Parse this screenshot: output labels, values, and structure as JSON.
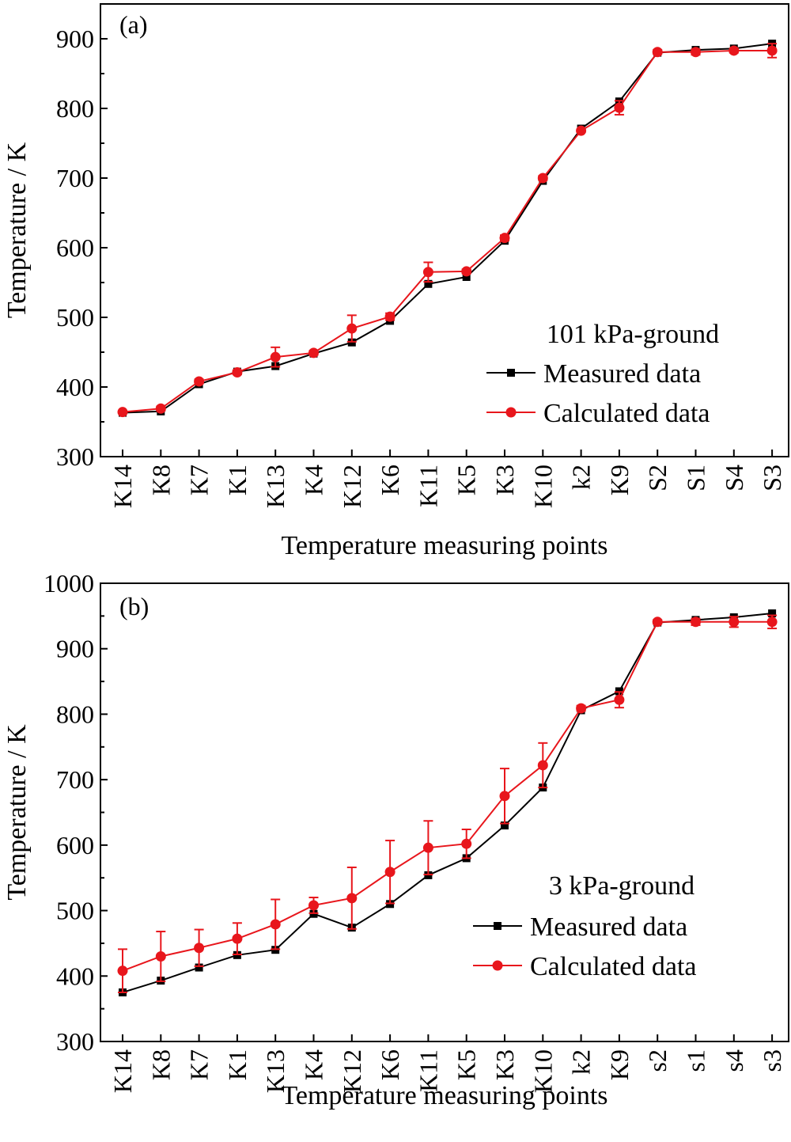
{
  "chart_data": [
    {
      "type": "line",
      "panel_label": "(a)",
      "legend_title": "101 kPa-ground",
      "xlabel": "Temperature measuring points",
      "ylabel": "Temperature / K",
      "ylim": [
        300,
        950
      ],
      "yticks": [
        300,
        400,
        500,
        600,
        700,
        800,
        900
      ],
      "grid": false,
      "legend_position": "lower-right",
      "categories": [
        "K14",
        "K8",
        "K7",
        "K1",
        "K13",
        "K4",
        "K12",
        "K6",
        "K11",
        "K5",
        "K3",
        "K10",
        "k2",
        "K9",
        "S2",
        "S1",
        "S4",
        "S3"
      ],
      "series": [
        {
          "name": "Measured data",
          "color": "#000000",
          "marker": "square",
          "values": [
            363,
            365,
            404,
            422,
            430,
            448,
            464,
            495,
            548,
            558,
            610,
            696,
            771,
            810,
            880,
            884,
            886,
            893
          ],
          "errors": [
            0,
            0,
            0,
            0,
            0,
            0,
            0,
            0,
            0,
            0,
            0,
            0,
            0,
            0,
            0,
            0,
            0,
            0
          ]
        },
        {
          "name": "Calculated data",
          "color": "#e8161c",
          "marker": "circle",
          "values": [
            364,
            369,
            408,
            421,
            443,
            449,
            484,
            501,
            565,
            566,
            614,
            700,
            768,
            801,
            881,
            881,
            883,
            883
          ],
          "errors": [
            0,
            3,
            3,
            3,
            14,
            3,
            19,
            5,
            14,
            3,
            4,
            3,
            2,
            10,
            3,
            4,
            3,
            10
          ]
        }
      ]
    },
    {
      "type": "line",
      "panel_label": "(b)",
      "legend_title": "3 kPa-ground",
      "xlabel": "Temperature measuring points",
      "ylabel": "Temperature / K",
      "ylim": [
        300,
        1000
      ],
      "yticks": [
        300,
        400,
        500,
        600,
        700,
        800,
        900,
        1000
      ],
      "grid": false,
      "legend_position": "lower-right",
      "categories": [
        "K14",
        "K8",
        "K7",
        "K1",
        "K13",
        "K4",
        "K12",
        "K6",
        "K11",
        "K5",
        "K3",
        "K10",
        "k2",
        "K9",
        "s2",
        "s1",
        "s4",
        "s3"
      ],
      "series": [
        {
          "name": "Measured data",
          "color": "#000000",
          "marker": "square",
          "values": [
            375,
            393,
            413,
            432,
            440,
            495,
            474,
            510,
            554,
            580,
            630,
            688,
            806,
            835,
            940,
            944,
            948,
            954
          ],
          "errors": [
            0,
            0,
            0,
            0,
            0,
            0,
            0,
            0,
            0,
            0,
            0,
            0,
            0,
            0,
            0,
            0,
            0,
            0
          ]
        },
        {
          "name": "Calculated data",
          "color": "#e8161c",
          "marker": "circle",
          "values": [
            408,
            430,
            443,
            457,
            479,
            508,
            519,
            559,
            596,
            602,
            675,
            722,
            809,
            822,
            941,
            941,
            941,
            941
          ],
          "errors": [
            33,
            38,
            28,
            24,
            38,
            12,
            47,
            48,
            41,
            22,
            42,
            34,
            4,
            12,
            3,
            5,
            8,
            10
          ]
        }
      ]
    }
  ]
}
